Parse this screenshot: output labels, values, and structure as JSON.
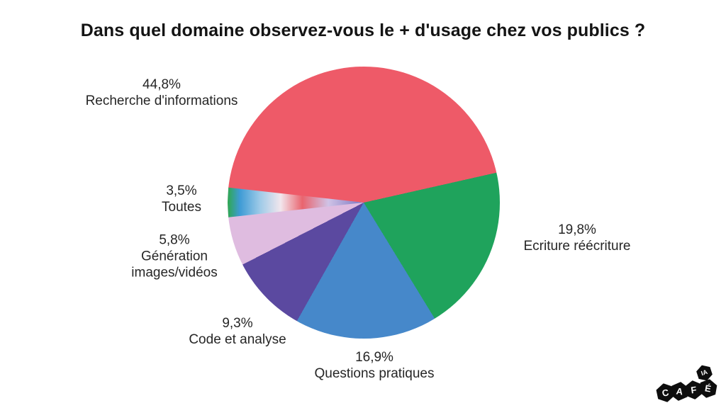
{
  "title": "Dans quel domaine observez-vous le + d'usage chez vos publics ?",
  "chart_data": {
    "type": "pie",
    "title": "Dans quel domaine observez-vous le + d'usage chez vos publics ?",
    "direction": "clockwise",
    "start_angle_deg": -84,
    "legend_position": "labels-around-pie",
    "slices": [
      {
        "name": "Recherche d'informations",
        "value_pct": 44.8,
        "display_pct": "44,8%",
        "color": "#ee5a68",
        "label_lines": [
          "44,8%",
          "Recherche d'informations"
        ]
      },
      {
        "name": "Ecriture réécriture",
        "value_pct": 19.8,
        "display_pct": "19,8%",
        "color": "#1fa35c",
        "label_lines": [
          "19,8%",
          "Ecriture réécriture"
        ]
      },
      {
        "name": "Questions pratiques",
        "value_pct": 16.9,
        "display_pct": "16,9%",
        "color": "#4688ca",
        "label_lines": [
          "16,9%",
          "Questions pratiques"
        ]
      },
      {
        "name": "Code et analyse",
        "value_pct": 9.3,
        "display_pct": "9,3%",
        "color": "#5b49a0",
        "label_lines": [
          "9,3%",
          "Code et analyse"
        ]
      },
      {
        "name": "Génération images/vidéos",
        "value_pct": 5.8,
        "display_pct": "5,8%",
        "color": "#dfbce0",
        "label_lines": [
          "5,8%",
          "Génération",
          "images/vidéos"
        ]
      },
      {
        "name": "Toutes",
        "value_pct": 3.5,
        "display_pct": "3,5%",
        "color": "#cfc3e6",
        "gradient_stops": [
          {
            "color": "#2fa84f",
            "pos": 0
          },
          {
            "color": "#3e9bd5",
            "pos": 9
          },
          {
            "color": "#9fcbe8",
            "pos": 24
          },
          {
            "color": "#f2e6ed",
            "pos": 39
          },
          {
            "color": "#e9646e",
            "pos": 55
          },
          {
            "color": "#cfc3e6",
            "pos": 74
          },
          {
            "color": "#7a74c0",
            "pos": 100
          }
        ],
        "label_lines": [
          "3,5%",
          "Toutes"
        ]
      }
    ]
  },
  "logo": {
    "letters": [
      "C",
      "A",
      "F",
      "É"
    ],
    "badge": "IA",
    "background": "#0d0d0d",
    "text_color": "#ffffff"
  }
}
